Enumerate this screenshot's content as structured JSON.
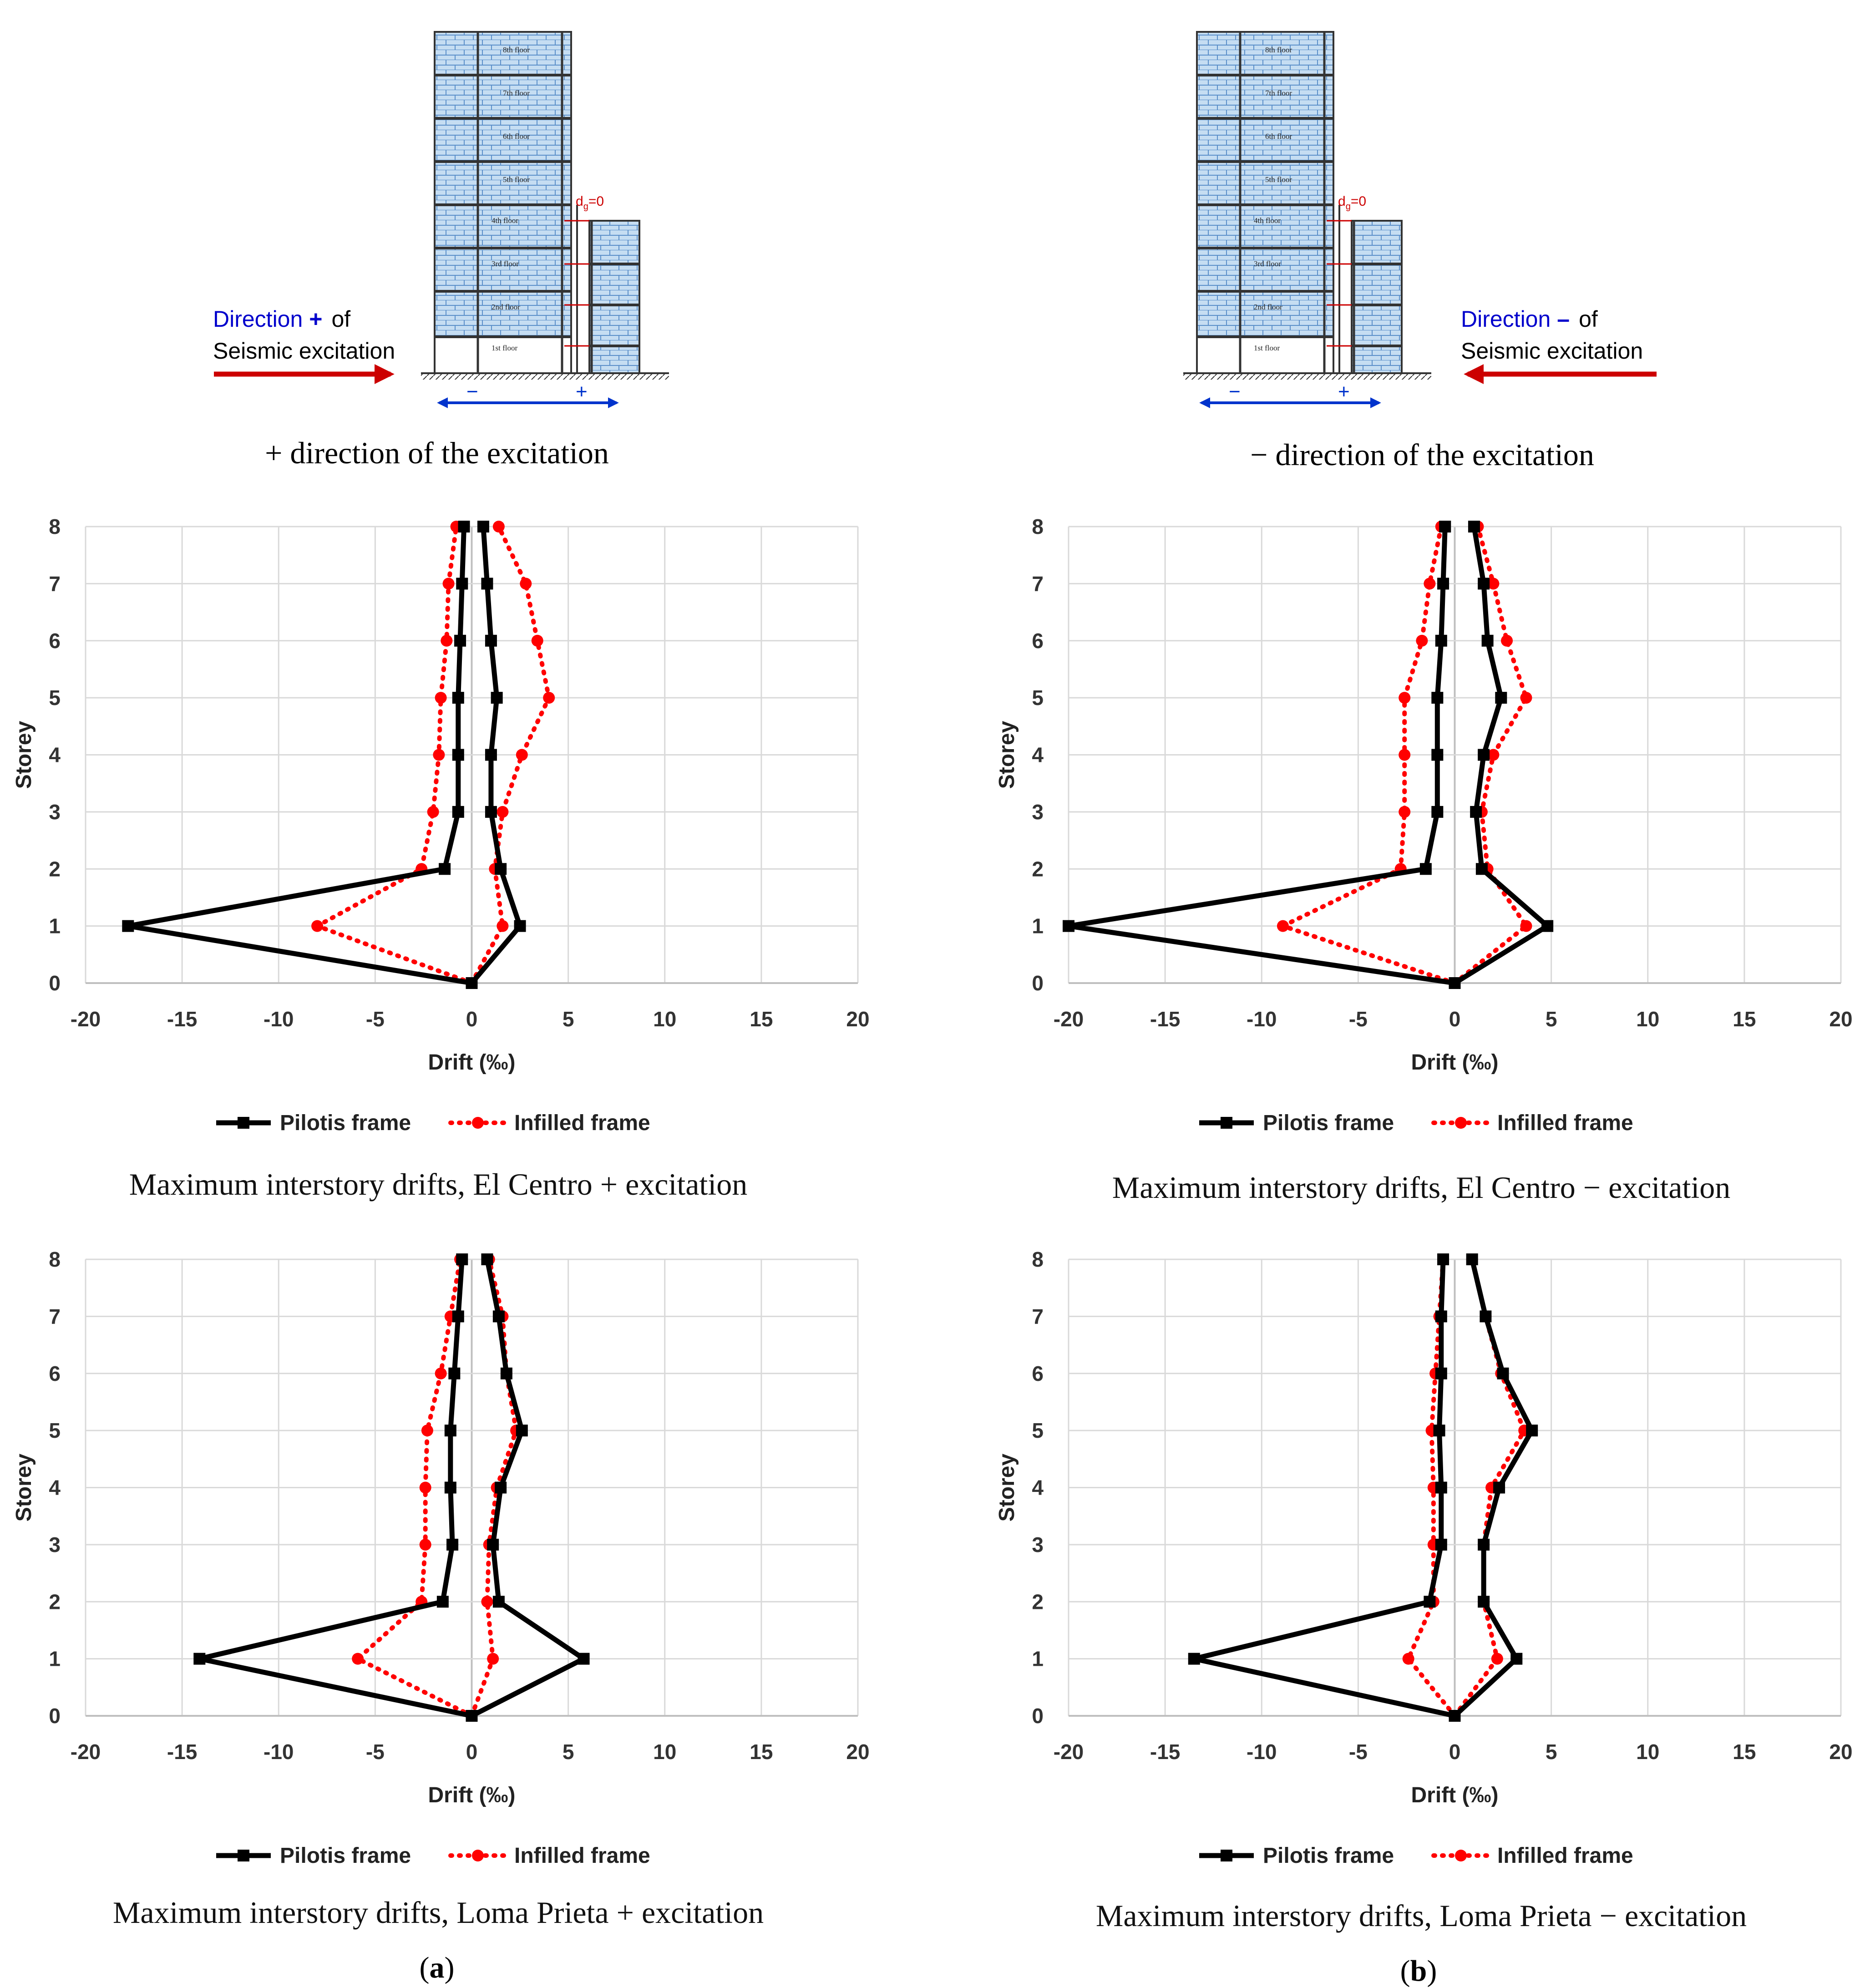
{
  "colors": {
    "pilotis": "#000000",
    "infilled": "#ff0000",
    "direction_text": "#0000cc",
    "seismic_arrow": "#cc0000",
    "grid": "#d9d9d9",
    "zero_axis": "#bfbfbf",
    "wall": "#9dc3e6",
    "brick_line": "#5b8fc9"
  },
  "top": {
    "left": {
      "direction_word": "Direction",
      "direction_sign": "+",
      "of_word": "of",
      "seismic_line": "Seismic excitation",
      "caption": "+ direction of the excitation"
    },
    "right": {
      "direction_word": "Direction",
      "direction_sign": "–",
      "of_word": "of",
      "seismic_line": "Seismic excitation",
      "caption": "− direction of the excitation"
    },
    "dg_label": "d",
    "dg_sub": "g",
    "dg_value": "=0",
    "floors": [
      "8th floor",
      "7th floor",
      "6th floor",
      "5th floor",
      "4th floor",
      "3rd floor",
      "2nd floor",
      "1st floor"
    ],
    "minus_sign": "−",
    "plus_sign": "+"
  },
  "chart_data": [
    {
      "type": "line",
      "title": "Maximum interstory drifts, El Centro + excitation",
      "xlabel": "Drift (‰)",
      "ylabel": "Storey",
      "xlim": [
        -20,
        20
      ],
      "ylim": [
        0,
        8
      ],
      "x_ticks": [
        -20,
        -15,
        -10,
        -5,
        0,
        5,
        10,
        15,
        20
      ],
      "y_ticks": [
        0,
        1,
        2,
        3,
        4,
        5,
        6,
        7,
        8
      ],
      "grid": true,
      "legend_position": "bottom",
      "series": [
        {
          "name": "Pilotis frame",
          "style": "solid",
          "marker": "square",
          "color": "#000000",
          "pos": [
            0,
            2.5,
            1.5,
            1.0,
            1.0,
            1.3,
            1.0,
            0.8,
            0.6
          ],
          "neg": [
            0,
            -17.8,
            -1.4,
            -0.7,
            -0.7,
            -0.7,
            -0.6,
            -0.5,
            -0.4
          ]
        },
        {
          "name": "Infilled frame",
          "style": "dotted",
          "marker": "circle",
          "color": "#ff0000",
          "pos": [
            0,
            1.6,
            1.2,
            1.6,
            2.6,
            4.0,
            3.4,
            2.8,
            1.4
          ],
          "neg": [
            0,
            -8.0,
            -2.6,
            -2.0,
            -1.7,
            -1.6,
            -1.3,
            -1.2,
            -0.8
          ]
        }
      ]
    },
    {
      "type": "line",
      "title": "Maximum interstory drifts, El Centro − excitation",
      "xlabel": "Drift (‰)",
      "ylabel": "Storey",
      "xlim": [
        -20,
        20
      ],
      "ylim": [
        0,
        8
      ],
      "x_ticks": [
        -20,
        -15,
        -10,
        -5,
        0,
        5,
        10,
        15,
        20
      ],
      "y_ticks": [
        0,
        1,
        2,
        3,
        4,
        5,
        6,
        7,
        8
      ],
      "grid": true,
      "legend_position": "bottom",
      "series": [
        {
          "name": "Pilotis frame",
          "style": "solid",
          "marker": "square",
          "color": "#000000",
          "pos": [
            0,
            4.8,
            1.4,
            1.1,
            1.5,
            2.4,
            1.7,
            1.5,
            1.0
          ],
          "neg": [
            0,
            -20.0,
            -1.5,
            -0.9,
            -0.9,
            -0.9,
            -0.7,
            -0.6,
            -0.5
          ]
        },
        {
          "name": "Infilled frame",
          "style": "dotted",
          "marker": "circle",
          "color": "#ff0000",
          "pos": [
            0,
            3.7,
            1.7,
            1.4,
            2.0,
            3.7,
            2.7,
            2.0,
            1.2
          ],
          "neg": [
            0,
            -8.9,
            -2.8,
            -2.6,
            -2.6,
            -2.6,
            -1.7,
            -1.3,
            -0.7
          ]
        }
      ]
    },
    {
      "type": "line",
      "title": "Maximum interstory drifts, Loma Prieta + excitation",
      "xlabel": "Drift (‰)",
      "ylabel": "Storey",
      "xlim": [
        -20,
        20
      ],
      "ylim": [
        0,
        8
      ],
      "x_ticks": [
        -20,
        -15,
        -10,
        -5,
        0,
        5,
        10,
        15,
        20
      ],
      "y_ticks": [
        0,
        1,
        2,
        3,
        4,
        5,
        6,
        7,
        8
      ],
      "grid": true,
      "legend_position": "bottom",
      "series": [
        {
          "name": "Pilotis frame",
          "style": "solid",
          "marker": "square",
          "color": "#000000",
          "pos": [
            0,
            5.8,
            1.4,
            1.1,
            1.5,
            2.6,
            1.8,
            1.4,
            0.8
          ],
          "neg": [
            0,
            -14.1,
            -1.5,
            -1.0,
            -1.1,
            -1.1,
            -0.9,
            -0.7,
            -0.5
          ]
        },
        {
          "name": "Infilled frame",
          "style": "dotted",
          "marker": "circle",
          "color": "#ff0000",
          "pos": [
            0,
            1.1,
            0.8,
            0.9,
            1.3,
            2.3,
            1.8,
            1.6,
            0.9
          ],
          "neg": [
            0,
            -5.9,
            -2.6,
            -2.4,
            -2.4,
            -2.3,
            -1.6,
            -1.1,
            -0.6
          ]
        }
      ]
    },
    {
      "type": "line",
      "title": "Maximum interstory drifts, Loma Prieta − excitation",
      "xlabel": "Drift (‰)",
      "ylabel": "Storey",
      "xlim": [
        -20,
        20
      ],
      "ylim": [
        0,
        8
      ],
      "x_ticks": [
        -20,
        -15,
        -10,
        -5,
        0,
        5,
        10,
        15,
        20
      ],
      "y_ticks": [
        0,
        1,
        2,
        3,
        4,
        5,
        6,
        7,
        8
      ],
      "grid": true,
      "legend_position": "bottom",
      "series": [
        {
          "name": "Pilotis frame",
          "style": "solid",
          "marker": "square",
          "color": "#000000",
          "pos": [
            0,
            3.2,
            1.5,
            1.5,
            2.3,
            4.0,
            2.5,
            1.6,
            0.9
          ],
          "neg": [
            0,
            -13.5,
            -1.3,
            -0.7,
            -0.7,
            -0.8,
            -0.7,
            -0.7,
            -0.6
          ]
        },
        {
          "name": "Infilled frame",
          "style": "dotted",
          "marker": "circle",
          "color": "#ff0000",
          "pos": [
            0,
            2.2,
            1.5,
            1.5,
            1.9,
            3.6,
            2.4,
            1.6,
            0.9
          ],
          "neg": [
            0,
            -2.4,
            -1.1,
            -1.1,
            -1.1,
            -1.2,
            -1.0,
            -0.8,
            -0.6
          ]
        }
      ]
    }
  ],
  "panel_labels": {
    "a_open": "(",
    "a": "a",
    "a_close": ")",
    "b_open": "(",
    "b": "b",
    "b_close": ")"
  }
}
